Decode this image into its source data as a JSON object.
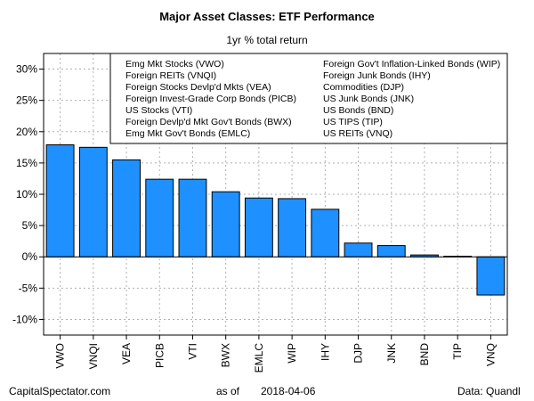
{
  "header": {
    "title": "Major Asset Classes: ETF Performance",
    "subtitle": "1yr % total return"
  },
  "footer": {
    "source_left": "CapitalSpectator.com",
    "as_of_label": "as of",
    "as_of_date": "2018-04-06",
    "data_credit": "Data: Quandl"
  },
  "chart_data": {
    "type": "bar",
    "title": "Major Asset Classes: ETF Performance",
    "subtitle": "1yr % total return",
    "categories": [
      "VWO",
      "VNQI",
      "VEA",
      "PICB",
      "VTI",
      "BWX",
      "EMLC",
      "WIP",
      "IHY",
      "DJP",
      "JNK",
      "BND",
      "TIP",
      "VNQ"
    ],
    "values": [
      17.9,
      17.5,
      15.5,
      12.4,
      12.4,
      10.4,
      9.4,
      9.3,
      7.6,
      2.2,
      1.8,
      0.3,
      0.1,
      -6.1
    ],
    "ylim": [
      -12.5,
      32.5
    ],
    "yticks": [
      -10,
      -5,
      0,
      5,
      10,
      15,
      20,
      25,
      30
    ],
    "ytick_labels": [
      "-10%",
      "-5%",
      "0%",
      "5%",
      "10%",
      "15%",
      "20%",
      "25%",
      "30%"
    ],
    "grid": true,
    "bar_color": "#1E90FF",
    "legend_position": "top",
    "legend": {
      "left": [
        "Emg Mkt Stocks (VWO)",
        "Foreign REITs (VNQI)",
        "Foreign Stocks Devlp'd Mkts (VEA)",
        "Foreign Invest-Grade Corp Bonds (PICB)",
        "US Stocks (VTI)",
        "Foreign Devlp'd Mkt Gov't Bonds (BWX)",
        "Emg Mkt Gov't Bonds (EMLC)"
      ],
      "right": [
        "Foreign Gov't Inflation-Linked Bonds (WIP)",
        "Foreign Junk Bonds (IHY)",
        "Commodities (DJP)",
        "US Junk Bonds (JNK)",
        "US Bonds (BND)",
        "US TIPS (TIP)",
        "US REITs (VNQ)"
      ]
    }
  }
}
